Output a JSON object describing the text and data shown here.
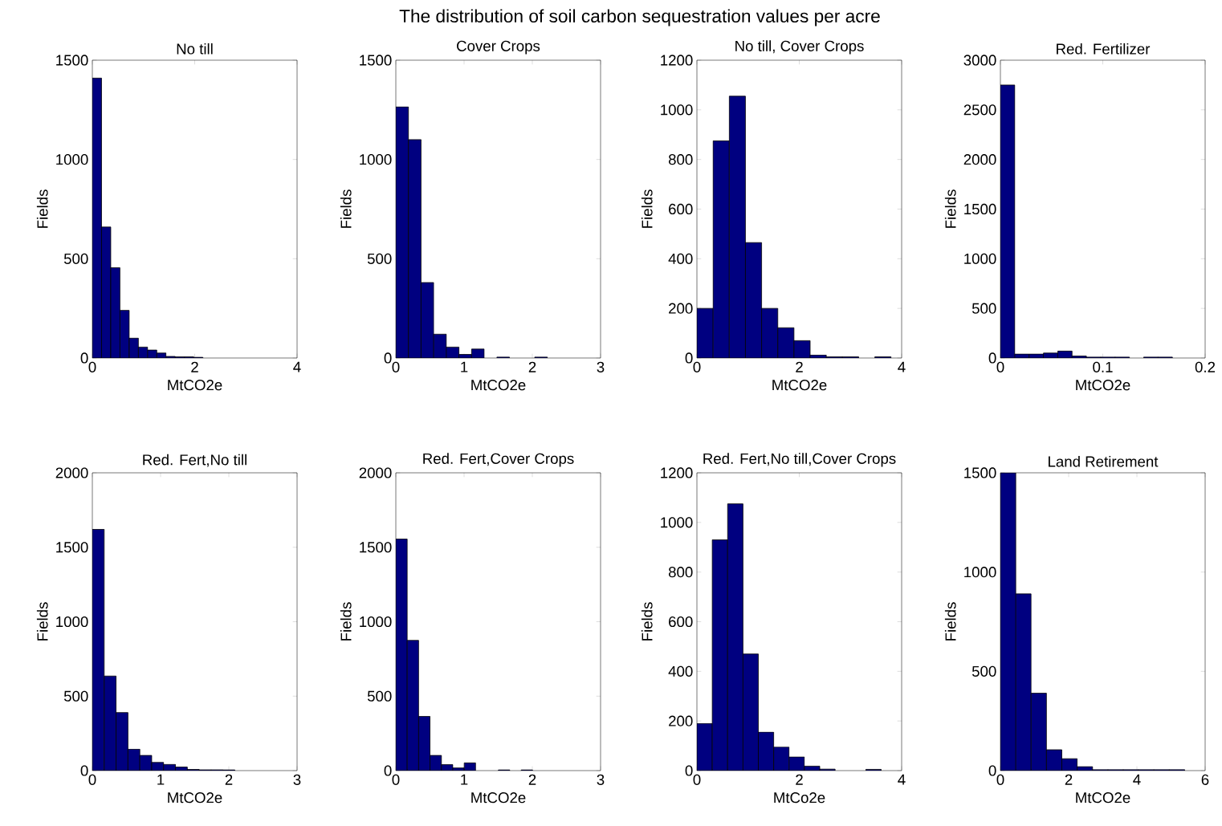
{
  "chart_data": [
    {
      "type": "other",
      "title": "The distribution of soil carbon sequestration values per acre"
    },
    {
      "type": "histogram",
      "title": "No till",
      "xlabel": "MtCO2e",
      "ylabel": "Fields",
      "color": "#000080",
      "xlim": [
        0,
        4
      ],
      "ylim": [
        0,
        1500
      ],
      "xticks": [
        0,
        2,
        4
      ],
      "yticks": [
        0,
        500,
        1000,
        1500
      ],
      "bins": [
        0,
        0.18,
        0.36,
        0.54,
        0.72,
        0.9,
        1.08,
        1.26,
        1.44,
        1.62,
        1.8,
        1.98,
        2.16
      ],
      "values": [
        1410,
        660,
        455,
        240,
        100,
        55,
        40,
        25,
        8,
        6,
        6,
        4
      ]
    },
    {
      "type": "histogram",
      "title": "Cover Crops",
      "xlabel": "MtCO2e",
      "ylabel": "Fields",
      "color": "#000080",
      "xlim": [
        0,
        3
      ],
      "ylim": [
        0,
        1500
      ],
      "xticks": [
        0,
        1,
        2,
        3
      ],
      "yticks": [
        0,
        500,
        1000,
        1500
      ],
      "bins": [
        0,
        0.185,
        0.37,
        0.555,
        0.74,
        0.925,
        1.11,
        1.295,
        1.48,
        1.665,
        1.85,
        2.035,
        2.22
      ],
      "values": [
        1265,
        1100,
        380,
        120,
        55,
        18,
        45,
        0,
        5,
        0,
        0,
        5
      ]
    },
    {
      "type": "histogram",
      "title": "No till, Cover Crops",
      "xlabel": "MtCO2e",
      "ylabel": "Fields",
      "color": "#000080",
      "xlim": [
        0,
        4
      ],
      "ylim": [
        0,
        1200
      ],
      "xticks": [
        0,
        2,
        4
      ],
      "yticks": [
        0,
        200,
        400,
        600,
        800,
        1000,
        1200
      ],
      "bins": [
        0,
        0.316,
        0.632,
        0.948,
        1.264,
        1.58,
        1.896,
        2.212,
        2.528,
        2.844,
        3.16,
        3.476,
        3.792
      ],
      "values": [
        200,
        875,
        1055,
        465,
        200,
        122,
        70,
        12,
        5,
        5,
        0,
        5
      ]
    },
    {
      "type": "histogram",
      "title": "Red. Fertilizer",
      "xlabel": "MtCO2e",
      "ylabel": "Fields",
      "color": "#000080",
      "xlim": [
        0,
        0.2
      ],
      "ylim": [
        0,
        3000
      ],
      "xticks": [
        0,
        0.1,
        0.2
      ],
      "yticks": [
        0,
        500,
        1000,
        1500,
        2000,
        2500,
        3000
      ],
      "bins": [
        0,
        0.014,
        0.028,
        0.042,
        0.056,
        0.07,
        0.084,
        0.098,
        0.112,
        0.126,
        0.14,
        0.154,
        0.168
      ],
      "values": [
        2750,
        40,
        40,
        50,
        70,
        20,
        10,
        10,
        10,
        0,
        10,
        10
      ]
    },
    {
      "type": "histogram",
      "title": "Red. Fert,No till",
      "xlabel": "MtCO2e",
      "ylabel": "Fields",
      "color": "#000080",
      "xlim": [
        0,
        3
      ],
      "ylim": [
        0,
        2000
      ],
      "xticks": [
        0,
        1,
        2,
        3
      ],
      "yticks": [
        0,
        500,
        1000,
        1500,
        2000
      ],
      "bins": [
        0,
        0.174,
        0.348,
        0.522,
        0.696,
        0.87,
        1.044,
        1.218,
        1.392,
        1.566,
        1.74,
        1.914,
        2.088
      ],
      "values": [
        1620,
        635,
        390,
        144,
        102,
        55,
        42,
        24,
        8,
        6,
        6,
        5
      ]
    },
    {
      "type": "histogram",
      "title": "Red. Fert,Cover Crops",
      "xlabel": "MtCO2e",
      "ylabel": "Fields",
      "color": "#000080",
      "xlim": [
        0,
        3
      ],
      "ylim": [
        0,
        2000
      ],
      "xticks": [
        0,
        1,
        2,
        3
      ],
      "yticks": [
        0,
        500,
        1000,
        1500,
        2000
      ],
      "bins": [
        0,
        0.167,
        0.334,
        0.501,
        0.668,
        0.835,
        1.002,
        1.169,
        1.336,
        1.503,
        1.67,
        1.837,
        2.004
      ],
      "values": [
        1555,
        875,
        364,
        102,
        40,
        18,
        52,
        0,
        0,
        5,
        0,
        5
      ]
    },
    {
      "type": "histogram",
      "title": "Red. Fert,No till,Cover Crops",
      "xlabel": "MtCo2e",
      "ylabel": "Fields",
      "color": "#000080",
      "xlim": [
        0,
        4
      ],
      "ylim": [
        0,
        1200
      ],
      "xticks": [
        0,
        2,
        4
      ],
      "yticks": [
        0,
        200,
        400,
        600,
        800,
        1000,
        1200
      ],
      "bins": [
        0,
        0.3,
        0.6,
        0.9,
        1.2,
        1.5,
        1.8,
        2.1,
        2.4,
        2.7,
        3.0,
        3.3,
        3.6
      ],
      "values": [
        190,
        930,
        1075,
        470,
        155,
        95,
        55,
        18,
        6,
        0,
        0,
        5
      ]
    },
    {
      "type": "histogram",
      "title": "Land Retirement",
      "xlabel": "MtCO2e",
      "ylabel": "Fields",
      "color": "#000080",
      "xlim": [
        0,
        6
      ],
      "ylim": [
        0,
        1500
      ],
      "xticks": [
        0,
        2,
        4,
        6
      ],
      "yticks": [
        0,
        500,
        1000,
        1500
      ],
      "bins": [
        0,
        0.45,
        0.9,
        1.35,
        1.8,
        2.25,
        2.7,
        3.15,
        3.6,
        4.05,
        4.5,
        4.95,
        5.4
      ],
      "values": [
        1500,
        890,
        390,
        105,
        60,
        20,
        5,
        5,
        5,
        5,
        5,
        5
      ]
    }
  ]
}
